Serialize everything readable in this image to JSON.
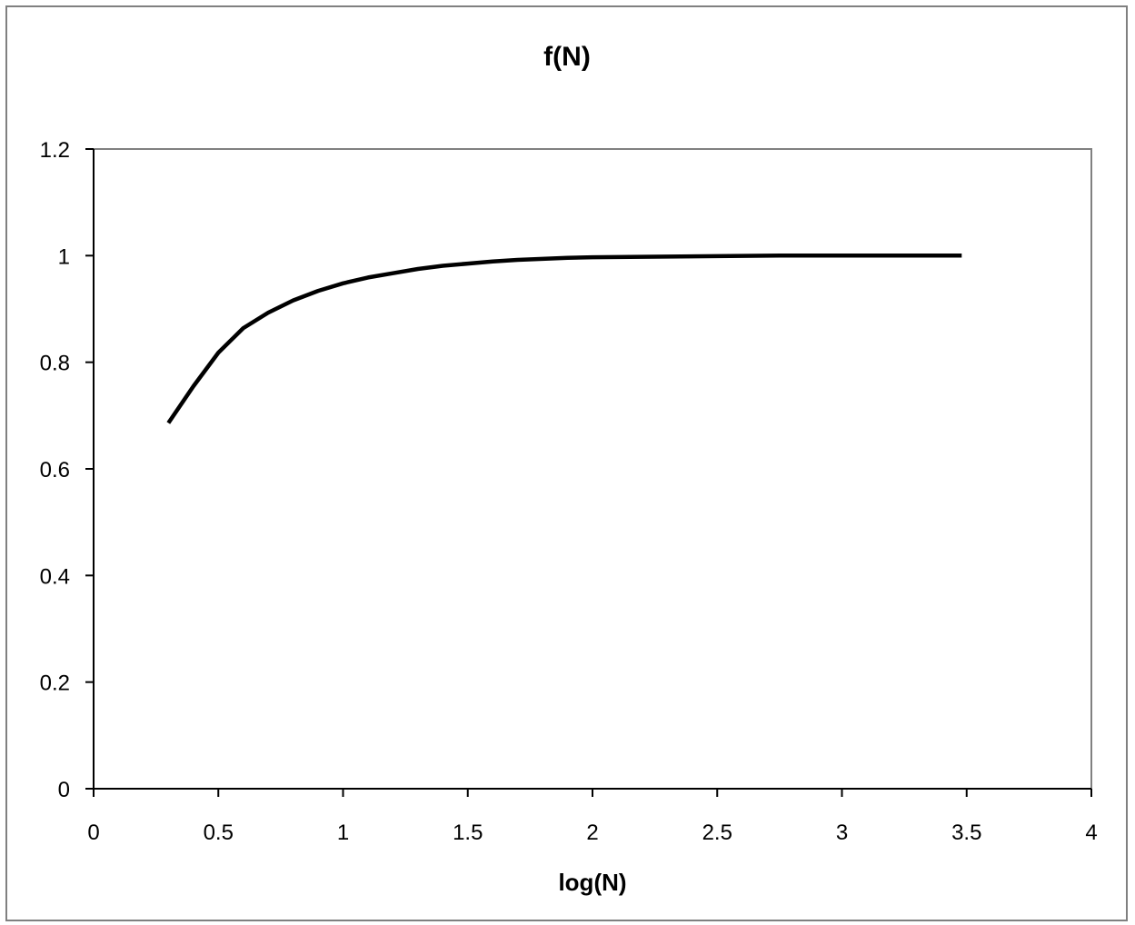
{
  "chart_data": {
    "type": "line",
    "title": "f(N)",
    "xlabel": "log(N)",
    "ylabel": "",
    "xlim": [
      0,
      4
    ],
    "ylim": [
      0,
      1.2
    ],
    "x_ticks": [
      "0",
      "0.5",
      "1",
      "1.5",
      "2",
      "2.5",
      "3",
      "3.5",
      "4"
    ],
    "y_ticks": [
      "0",
      "0.2",
      "0.4",
      "0.6",
      "0.8",
      "1",
      "1.2"
    ],
    "grid": false,
    "legend": "none",
    "series": [
      {
        "color": "#000000",
        "x": [
          0.3,
          0.4,
          0.5,
          0.6,
          0.7,
          0.8,
          0.9,
          1.0,
          1.1,
          1.2,
          1.3,
          1.4,
          1.5,
          1.6,
          1.7,
          1.8,
          1.9,
          2.0,
          2.25,
          2.5,
          2.75,
          3.0,
          3.25,
          3.48
        ],
        "y": [
          0.686,
          0.755,
          0.818,
          0.864,
          0.893,
          0.916,
          0.934,
          0.948,
          0.959,
          0.967,
          0.975,
          0.981,
          0.985,
          0.989,
          0.992,
          0.994,
          0.996,
          0.997,
          0.998,
          0.999,
          1.0,
          1.0,
          1.0,
          1.0
        ]
      }
    ]
  }
}
